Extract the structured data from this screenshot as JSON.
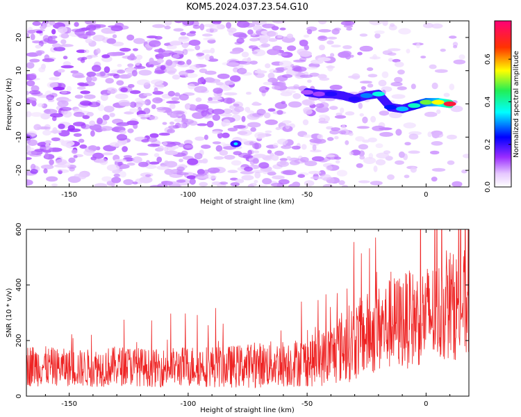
{
  "title": "KOM5.2024.037.23.54.G10",
  "colors": {
    "snr_line": "#ee2222",
    "frame": "#000000",
    "track_purple": "#8a00ff",
    "track_blue": "#0000ff",
    "track_cyan": "#00ffff",
    "track_green": "#22ee55",
    "track_yellow": "#ffff00",
    "track_red": "#ff0000"
  },
  "chart_data": [
    {
      "type": "heatmap",
      "xlabel": "Height of straight line (km)",
      "ylabel": "Frequency (Hz)",
      "xlim": [
        -168,
        18
      ],
      "ylim": [
        -25,
        25
      ],
      "x_ticks": [
        -150,
        -100,
        -50,
        0
      ],
      "x_tick_labels": [
        "-150",
        "-100",
        "-50",
        "0"
      ],
      "y_ticks": [
        20,
        10,
        0,
        -10,
        -20
      ],
      "y_tick_labels": [
        "20",
        "10",
        "0",
        "-10",
        "-20"
      ],
      "colorbar": {
        "label": "Normalized spectral amplitude",
        "range": [
          0,
          0.78
        ],
        "ticks": [
          0.0,
          0.2,
          0.4,
          0.6
        ],
        "tick_labels": [
          "0.0",
          "0.2",
          "0.4",
          "0.6"
        ],
        "colormap": "rainbow: white-purple-blue-cyan-green-yellow-red"
      },
      "track_points": [
        {
          "x": -50,
          "y": 3.5,
          "value": 0.12
        },
        {
          "x": -45,
          "y": 3.0,
          "value": 0.13
        },
        {
          "x": -40,
          "y": 3.0,
          "value": 0.22
        },
        {
          "x": -35,
          "y": 2.5,
          "value": 0.2
        },
        {
          "x": -30,
          "y": 1.5,
          "value": 0.22
        },
        {
          "x": -25,
          "y": 2.5,
          "value": 0.3
        },
        {
          "x": -20,
          "y": 3.0,
          "value": 0.38
        },
        {
          "x": -15,
          "y": -1.0,
          "value": 0.25
        },
        {
          "x": -10,
          "y": -1.5,
          "value": 0.33
        },
        {
          "x": -5,
          "y": -0.5,
          "value": 0.4
        },
        {
          "x": 0,
          "y": 0.5,
          "value": 0.52
        },
        {
          "x": 5,
          "y": 0.5,
          "value": 0.6
        },
        {
          "x": 10,
          "y": 0.0,
          "value": 0.78
        },
        {
          "x": -80,
          "y": -12.0,
          "value": 0.2
        }
      ]
    },
    {
      "type": "line",
      "xlabel": "Height of straight line (km)",
      "ylabel": "SNR (10 * v/v)",
      "xlim": [
        -168,
        18
      ],
      "ylim": [
        0,
        600
      ],
      "x_ticks": [
        -150,
        -100,
        -50,
        0
      ],
      "x_tick_labels": [
        "-150",
        "-100",
        "-50",
        "0"
      ],
      "y_ticks": [
        0,
        200,
        400,
        600
      ],
      "y_tick_labels": [
        "0",
        "200",
        "400",
        "600"
      ],
      "x": [
        -165,
        -155,
        -145,
        -135,
        -125,
        -115,
        -105,
        -95,
        -85,
        -75,
        -65,
        -55,
        -45,
        -40,
        -35,
        -30,
        -25,
        -20,
        -15,
        -10,
        -5,
        0,
        5,
        10,
        15
      ],
      "values": [
        110,
        105,
        100,
        105,
        110,
        100,
        105,
        110,
        105,
        110,
        115,
        120,
        130,
        150,
        180,
        200,
        220,
        240,
        260,
        270,
        280,
        290,
        300,
        320,
        330
      ],
      "spread": [
        95,
        85,
        85,
        90,
        90,
        85,
        90,
        95,
        95,
        100,
        105,
        110,
        120,
        140,
        170,
        180,
        190,
        200,
        210,
        220,
        220,
        230,
        230,
        240,
        250
      ]
    }
  ]
}
